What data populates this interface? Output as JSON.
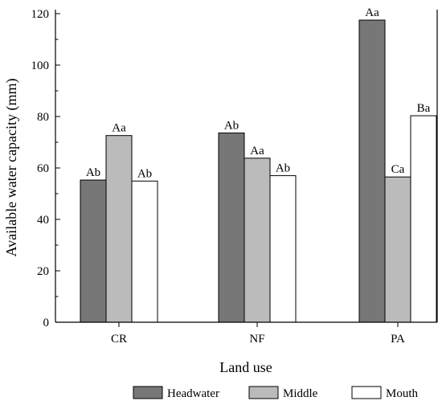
{
  "chart_data": {
    "type": "bar",
    "xlabel": "Land use",
    "ylabel": "Available water capacity (mm)",
    "ylim": [
      0,
      120
    ],
    "yticks": [
      0,
      20,
      40,
      60,
      80,
      100,
      120
    ],
    "categories": [
      "CR",
      "NF",
      "PA"
    ],
    "series": [
      {
        "name": "Headwater",
        "color": "#777777",
        "values": [
          55.3,
          73.6,
          117.5
        ],
        "labels": [
          "Ab",
          "Ab",
          "Aa"
        ]
      },
      {
        "name": "Middle",
        "color": "#bbbbbb",
        "values": [
          72.6,
          63.8,
          56.5
        ],
        "labels": [
          "Aa",
          "Aa",
          "Ca"
        ]
      },
      {
        "name": "Mouth",
        "color": "#ffffff",
        "values": [
          54.9,
          57.0,
          80.3
        ],
        "labels": [
          "Ab",
          "Ab",
          "Ba"
        ]
      }
    ],
    "legend_position": "bottom"
  }
}
